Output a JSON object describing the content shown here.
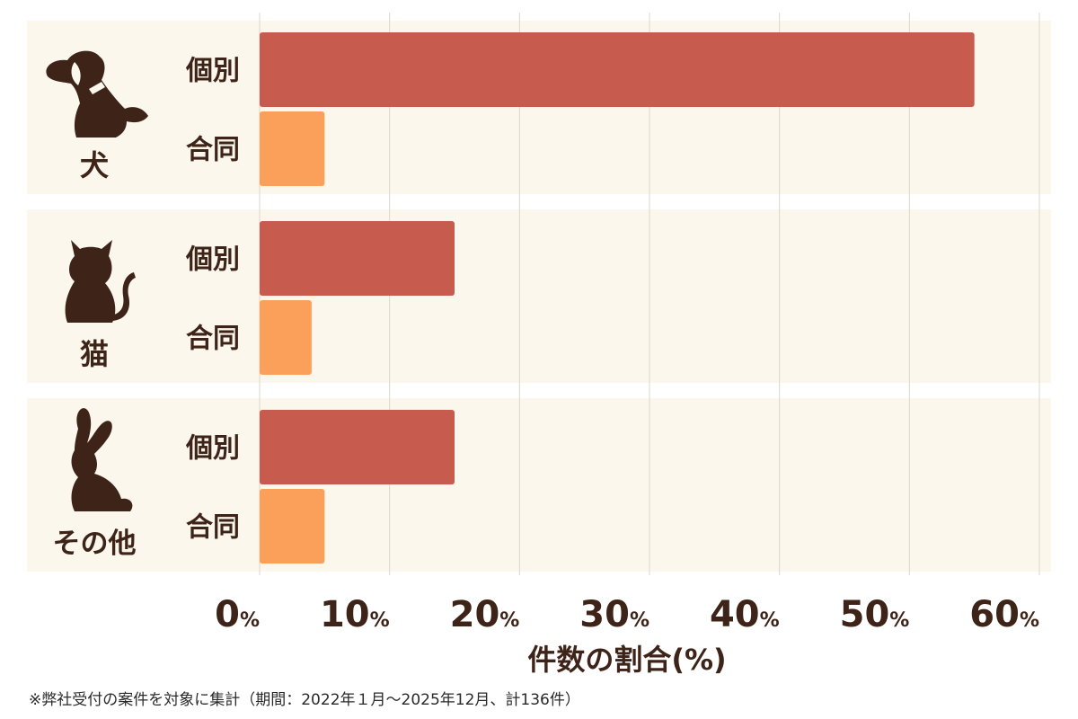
{
  "chart_data": {
    "type": "bar",
    "orientation": "horizontal",
    "xlabel": "件数の割合(%)",
    "xlim": [
      0,
      60
    ],
    "xticks": [
      {
        "value": 0,
        "number": "0",
        "unit": "%"
      },
      {
        "value": 10,
        "number": "10",
        "unit": "%"
      },
      {
        "value": 20,
        "number": "20",
        "unit": "%"
      },
      {
        "value": 30,
        "number": "30",
        "unit": "%"
      },
      {
        "value": 40,
        "number": "40",
        "unit": "%"
      },
      {
        "value": 50,
        "number": "50",
        "unit": "%"
      },
      {
        "value": 60,
        "number": "60",
        "unit": "%"
      }
    ],
    "grid": true,
    "subcategories": [
      "個別",
      "合同"
    ],
    "groups": [
      {
        "label": "犬",
        "icon": "dog-icon",
        "values": [
          55,
          5
        ]
      },
      {
        "label": "猫",
        "icon": "cat-icon",
        "values": [
          15,
          4
        ]
      },
      {
        "label": "その他",
        "icon": "rabbit-icon",
        "values": [
          15,
          5
        ]
      }
    ],
    "colors": {
      "個別": "#c65b4e",
      "合同": "#fba05a",
      "panel": "#fcf7ec",
      "grid": "#ddd6ca",
      "text": "#3e2418",
      "icon": "#3e2418"
    }
  },
  "footnote": "※弊社受付の案件を対象に集計（期間：2022年１月～2025年12月、計136件）"
}
